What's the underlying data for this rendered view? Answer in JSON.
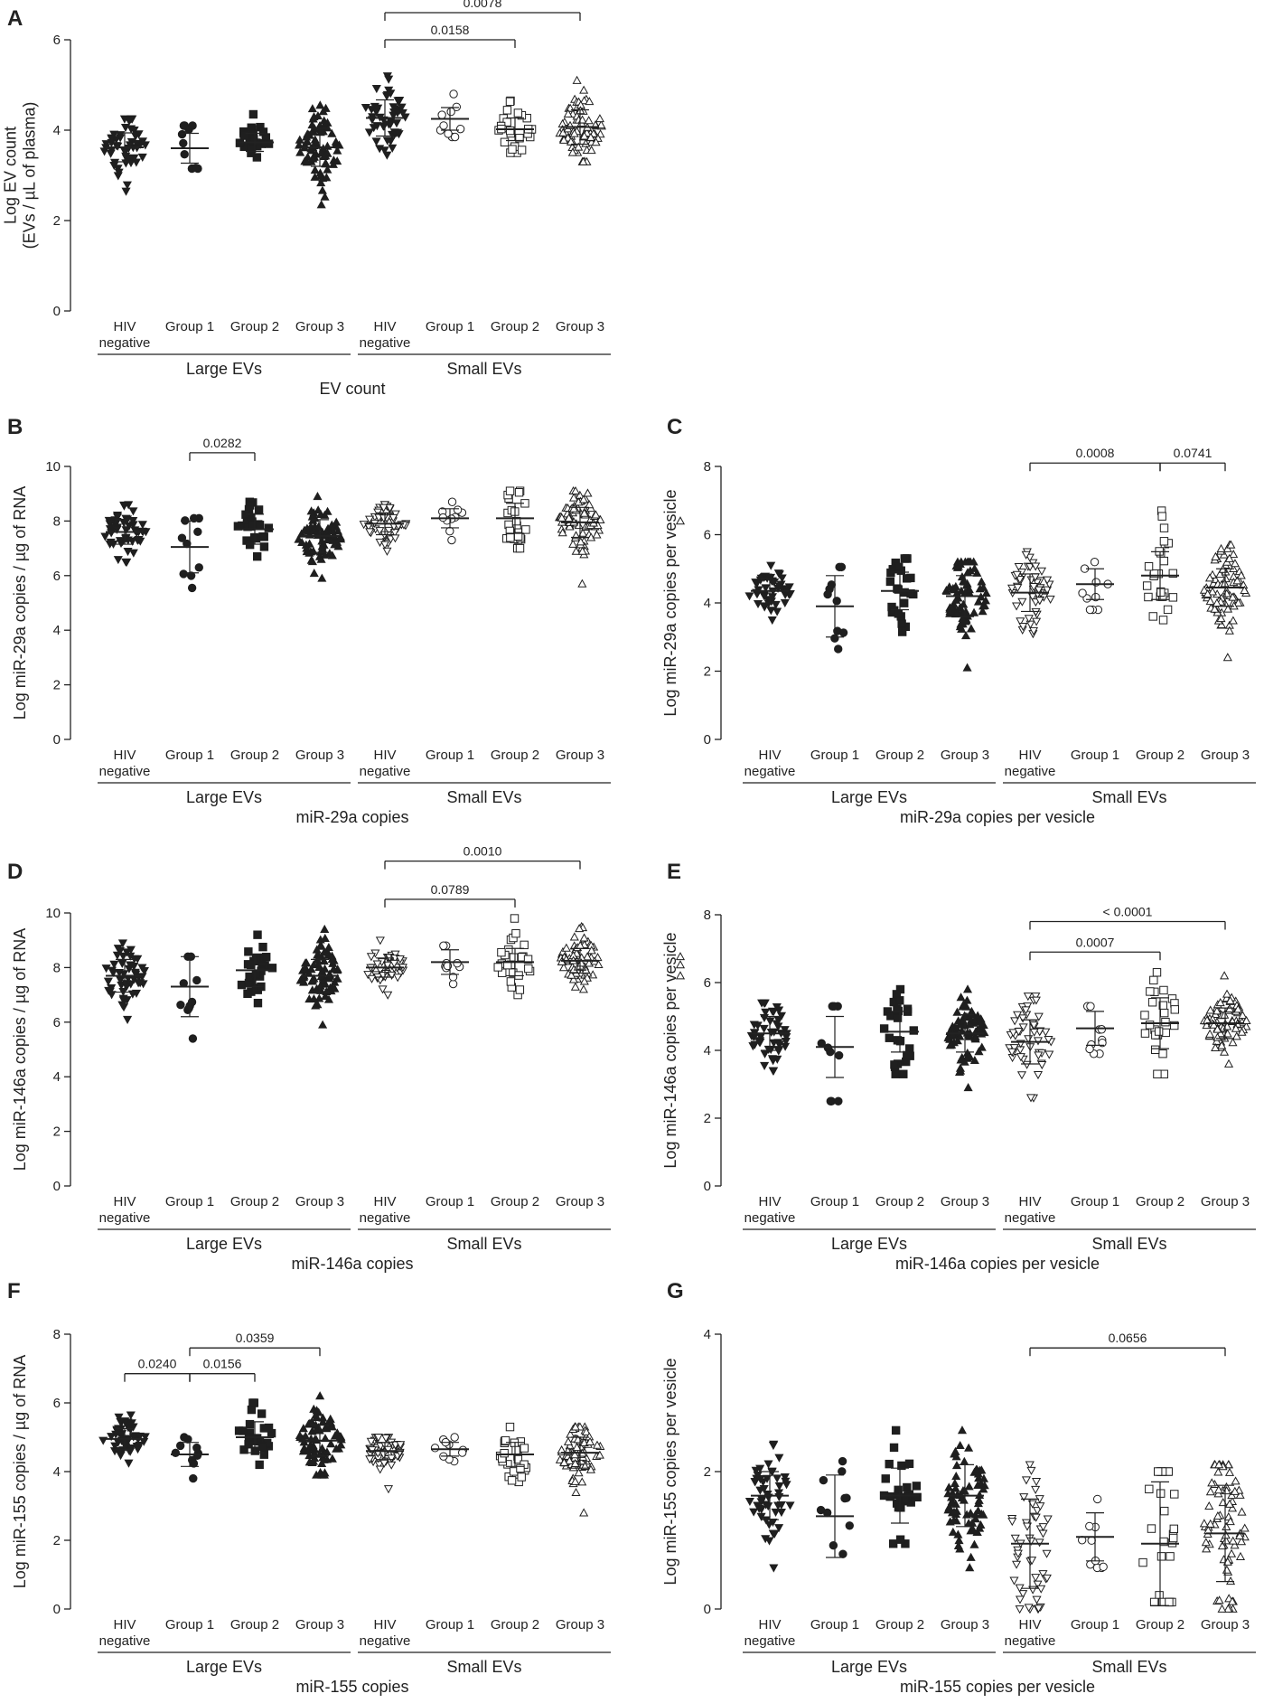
{
  "chart_data": [
    {
      "panel": "A",
      "type": "scatter",
      "title": "EV count",
      "ylabel": "Log EV count\n(EVs / µL of plasma)",
      "ylim": [
        0,
        6
      ],
      "yticks": [
        0,
        2,
        4,
        6
      ],
      "categories": [
        "HIV\nnegative",
        "Group 1",
        "Group 2",
        "Group 3",
        "HIV\nnegative",
        "Group 1",
        "Group 2",
        "Group 3"
      ],
      "group_labels": [
        "Large EVs",
        "Small EVs"
      ],
      "markers": [
        "tri-down-filled",
        "circle-filled",
        "square-filled",
        "tri-up-filled",
        "tri-down-filled",
        "circle-open",
        "square-open",
        "tri-up-open"
      ],
      "series": [
        {
          "name": "Large EVs HIV negative",
          "n": 50,
          "mean": 3.62,
          "sd": 0.32,
          "min": 2.65,
          "max": 4.25
        },
        {
          "name": "Large EVs Group 1",
          "n": 10,
          "mean": 3.6,
          "sd": 0.33,
          "min": 3.15,
          "max": 4.1
        },
        {
          "name": "Large EVs Group 2",
          "n": 25,
          "mean": 3.73,
          "sd": 0.2,
          "min": 3.4,
          "max": 4.35
        },
        {
          "name": "Large EVs Group 3",
          "n": 75,
          "mean": 3.62,
          "sd": 0.42,
          "min": 2.35,
          "max": 4.55
        },
        {
          "name": "Small EVs HIV negative",
          "n": 50,
          "mean": 4.27,
          "sd": 0.4,
          "min": 3.45,
          "max": 5.2
        },
        {
          "name": "Small EVs Group 1",
          "n": 10,
          "mean": 4.25,
          "sd": 0.25,
          "min": 3.85,
          "max": 4.8
        },
        {
          "name": "Small EVs Group 2",
          "n": 25,
          "mean": 4.02,
          "sd": 0.25,
          "min": 3.5,
          "max": 4.65
        },
        {
          "name": "Small EVs Group 3",
          "n": 75,
          "mean": 4.07,
          "sd": 0.38,
          "min": 3.3,
          "max": 5.1
        }
      ],
      "extra_points": [],
      "brackets": [
        {
          "from": 4,
          "to": 7,
          "label": "0.0078",
          "y": 6.6
        },
        {
          "from": 4,
          "to": 6,
          "label": "0.0158",
          "y": 6.0
        }
      ]
    },
    {
      "panel": "B",
      "type": "scatter",
      "title": "miR-29a copies",
      "ylabel": "Log miR-29a copies / µg of RNA",
      "ylim": [
        0,
        10
      ],
      "yticks": [
        0,
        2,
        4,
        6,
        8,
        10
      ],
      "categories": [
        "HIV\nnegative",
        "Group 1",
        "Group 2",
        "Group 3",
        "HIV\nnegative",
        "Group 1",
        "Group 2",
        "Group 3"
      ],
      "group_labels": [
        "Large EVs",
        "Small EVs"
      ],
      "markers": [
        "tri-down-filled",
        "circle-filled",
        "square-filled",
        "tri-up-filled",
        "tri-down-open",
        "circle-open",
        "square-open",
        "tri-up-open"
      ],
      "series": [
        {
          "name": "Large EVs HIV negative",
          "n": 50,
          "mean": 7.6,
          "sd": 0.45,
          "min": 6.5,
          "max": 8.6
        },
        {
          "name": "Large EVs Group 1",
          "n": 10,
          "mean": 7.05,
          "sd": 0.95,
          "min": 5.55,
          "max": 8.1
        },
        {
          "name": "Large EVs Group 2",
          "n": 25,
          "mean": 7.7,
          "sd": 0.55,
          "min": 6.7,
          "max": 8.7
        },
        {
          "name": "Large EVs Group 3",
          "n": 75,
          "mean": 7.45,
          "sd": 0.6,
          "min": 5.9,
          "max": 8.9
        },
        {
          "name": "Small EVs HIV negative",
          "n": 50,
          "mean": 7.9,
          "sd": 0.4,
          "min": 6.9,
          "max": 8.6
        },
        {
          "name": "Small EVs Group 1",
          "n": 10,
          "mean": 8.1,
          "sd": 0.35,
          "min": 7.3,
          "max": 8.7
        },
        {
          "name": "Small EVs Group 2",
          "n": 25,
          "mean": 8.1,
          "sd": 0.55,
          "min": 7.0,
          "max": 9.1
        },
        {
          "name": "Small EVs Group 3",
          "n": 75,
          "mean": 7.95,
          "sd": 0.55,
          "min": 5.7,
          "max": 9.1
        }
      ],
      "extra_points": [
        {
          "x": 9,
          "y": 8.0,
          "marker": "tri-up-open"
        }
      ],
      "brackets": [
        {
          "from": 1,
          "to": 2,
          "label": "0.0282",
          "y": 10.5
        }
      ]
    },
    {
      "panel": "C",
      "type": "scatter",
      "title": "miR-29a copies per vesicle",
      "ylabel": "Log miR-29a copies per vesicle",
      "ylim": [
        0,
        8
      ],
      "yticks": [
        0,
        2,
        4,
        6,
        8
      ],
      "categories": [
        "HIV\nnegative",
        "Group 1",
        "Group 2",
        "Group 3",
        "HIV\nnegative",
        "Group 1",
        "Group 2",
        "Group 3"
      ],
      "group_labels": [
        "Large EVs",
        "Small EVs"
      ],
      "markers": [
        "tri-down-filled",
        "circle-filled",
        "square-filled",
        "tri-up-filled",
        "tri-down-open",
        "circle-open",
        "square-open",
        "tri-up-open"
      ],
      "series": [
        {
          "name": "Large EVs HIV negative",
          "n": 50,
          "mean": 4.35,
          "sd": 0.35,
          "min": 3.5,
          "max": 5.1
        },
        {
          "name": "Large EVs Group 1",
          "n": 10,
          "mean": 3.9,
          "sd": 0.9,
          "min": 2.65,
          "max": 5.05
        },
        {
          "name": "Large EVs Group 2",
          "n": 25,
          "mean": 4.35,
          "sd": 0.55,
          "min": 3.15,
          "max": 5.3
        },
        {
          "name": "Large EVs Group 3",
          "n": 75,
          "mean": 4.2,
          "sd": 0.6,
          "min": 2.1,
          "max": 5.2
        },
        {
          "name": "Small EVs HIV negative",
          "n": 50,
          "mean": 4.3,
          "sd": 0.55,
          "min": 3.1,
          "max": 5.5
        },
        {
          "name": "Small EVs Group 1",
          "n": 10,
          "mean": 4.55,
          "sd": 0.45,
          "min": 3.8,
          "max": 5.2
        },
        {
          "name": "Small EVs Group 2",
          "n": 25,
          "mean": 4.8,
          "sd": 0.7,
          "min": 3.5,
          "max": 6.7
        },
        {
          "name": "Small EVs Group 3",
          "n": 75,
          "mean": 4.45,
          "sd": 0.55,
          "min": 2.4,
          "max": 5.7
        }
      ],
      "extra_points": [],
      "brackets": [
        {
          "from": 4,
          "to": 6,
          "label": "0.0008",
          "y": 8.1
        },
        {
          "from": 6,
          "to": 7,
          "label": "0.0741",
          "y": 8.1
        }
      ]
    },
    {
      "panel": "D",
      "type": "scatter",
      "title": "miR-146a copies",
      "ylabel": "Log miR-146a copies / µg of RNA",
      "ylim": [
        0,
        10
      ],
      "yticks": [
        0,
        2,
        4,
        6,
        8,
        10
      ],
      "categories": [
        "HIV\nnegative",
        "Group 1",
        "Group 2",
        "Group 3",
        "HIV\nnegative",
        "Group 1",
        "Group 2",
        "Group 3"
      ],
      "group_labels": [
        "Large EVs",
        "Small EVs"
      ],
      "markers": [
        "tri-down-filled",
        "circle-filled",
        "square-filled",
        "tri-up-filled",
        "tri-down-open",
        "circle-open",
        "square-open",
        "tri-up-open"
      ],
      "series": [
        {
          "name": "Large EVs HIV negative",
          "n": 50,
          "mean": 7.7,
          "sd": 0.6,
          "min": 6.1,
          "max": 8.9
        },
        {
          "name": "Large EVs Group 1",
          "n": 10,
          "mean": 7.3,
          "sd": 1.1,
          "min": 5.4,
          "max": 8.4
        },
        {
          "name": "Large EVs Group 2",
          "n": 25,
          "mean": 7.9,
          "sd": 0.6,
          "min": 6.7,
          "max": 9.2
        },
        {
          "name": "Large EVs Group 3",
          "n": 75,
          "mean": 7.7,
          "sd": 0.6,
          "min": 5.9,
          "max": 9.4
        },
        {
          "name": "Small EVs HIV negative",
          "n": 50,
          "mean": 8.0,
          "sd": 0.35,
          "min": 7.0,
          "max": 9.0
        },
        {
          "name": "Small EVs Group 1",
          "n": 10,
          "mean": 8.2,
          "sd": 0.45,
          "min": 7.4,
          "max": 8.8
        },
        {
          "name": "Small EVs Group 2",
          "n": 25,
          "mean": 8.2,
          "sd": 0.5,
          "min": 7.0,
          "max": 9.8
        },
        {
          "name": "Small EVs Group 3",
          "n": 75,
          "mean": 8.25,
          "sd": 0.45,
          "min": 7.2,
          "max": 9.5
        }
      ],
      "extra_points": [
        {
          "x": 9,
          "y": 8.4,
          "marker": "tri-up-open"
        },
        {
          "x": 9,
          "y": 8.1,
          "marker": "tri-up-open"
        },
        {
          "x": 9,
          "y": 7.7,
          "marker": "tri-up-open"
        }
      ],
      "brackets": [
        {
          "from": 4,
          "to": 7,
          "label": "0.0010",
          "y": 11.9
        },
        {
          "from": 4,
          "to": 6,
          "label": "0.0789",
          "y": 10.5
        }
      ]
    },
    {
      "panel": "E",
      "type": "scatter",
      "title": "miR-146a copies per vesicle",
      "ylabel": "Log miR-146a copies per vesicle",
      "ylim": [
        0,
        8
      ],
      "yticks": [
        0,
        2,
        4,
        6,
        8
      ],
      "categories": [
        "HIV\nnegative",
        "Group 1",
        "Group 2",
        "Group 3",
        "HIV\nnegative",
        "Group 1",
        "Group 2",
        "Group 3"
      ],
      "group_labels": [
        "Large EVs",
        "Small EVs"
      ],
      "markers": [
        "tri-down-filled",
        "circle-filled",
        "square-filled",
        "tri-up-filled",
        "tri-down-open",
        "circle-open",
        "square-open",
        "tri-up-open"
      ],
      "series": [
        {
          "name": "Large EVs HIV negative",
          "n": 50,
          "mean": 4.5,
          "sd": 0.5,
          "min": 3.4,
          "max": 5.4
        },
        {
          "name": "Large EVs Group 1",
          "n": 10,
          "mean": 4.1,
          "sd": 0.9,
          "min": 2.5,
          "max": 5.3
        },
        {
          "name": "Large EVs Group 2",
          "n": 25,
          "mean": 4.55,
          "sd": 0.6,
          "min": 3.3,
          "max": 5.8
        },
        {
          "name": "Large EVs Group 3",
          "n": 75,
          "mean": 4.5,
          "sd": 0.55,
          "min": 2.9,
          "max": 5.8
        },
        {
          "name": "Small EVs HIV negative",
          "n": 50,
          "mean": 4.25,
          "sd": 0.65,
          "min": 2.6,
          "max": 5.6
        },
        {
          "name": "Small EVs Group 1",
          "n": 10,
          "mean": 4.65,
          "sd": 0.5,
          "min": 3.9,
          "max": 5.3
        },
        {
          "name": "Small EVs Group 2",
          "n": 25,
          "mean": 4.8,
          "sd": 0.75,
          "min": 3.3,
          "max": 6.3
        },
        {
          "name": "Small EVs Group 3",
          "n": 75,
          "mean": 4.8,
          "sd": 0.45,
          "min": 3.6,
          "max": 6.2
        }
      ],
      "extra_points": [],
      "brackets": [
        {
          "from": 4,
          "to": 7,
          "label": "< 0.0001",
          "y": 7.8
        },
        {
          "from": 4,
          "to": 6,
          "label": "0.0007",
          "y": 6.9
        }
      ]
    },
    {
      "panel": "F",
      "type": "scatter",
      "title": "miR-155 copies",
      "ylabel": "Log miR-155 copies / µg of RNA",
      "ylim": [
        0,
        8
      ],
      "yticks": [
        0,
        2,
        4,
        6,
        8
      ],
      "categories": [
        "HIV\nnegative",
        "Group 1",
        "Group 2",
        "Group 3",
        "HIV\nnegative",
        "Group 1",
        "Group 2",
        "Group 3"
      ],
      "group_labels": [
        "Large EVs",
        "Small EVs"
      ],
      "markers": [
        "tri-down-filled",
        "circle-filled",
        "square-filled",
        "tri-up-filled",
        "tri-down-open",
        "circle-open",
        "square-open",
        "tri-up-open"
      ],
      "series": [
        {
          "name": "Large EVs HIV negative",
          "n": 50,
          "mean": 4.95,
          "sd": 0.3,
          "min": 4.25,
          "max": 5.65
        },
        {
          "name": "Large EVs Group 1",
          "n": 10,
          "mean": 4.5,
          "sd": 0.35,
          "min": 3.8,
          "max": 5.0
        },
        {
          "name": "Large EVs Group 2",
          "n": 25,
          "mean": 5.0,
          "sd": 0.45,
          "min": 4.2,
          "max": 6.0
        },
        {
          "name": "Large EVs Group 3",
          "n": 75,
          "mean": 4.9,
          "sd": 0.45,
          "min": 3.9,
          "max": 6.2
        },
        {
          "name": "Small EVs HIV negative",
          "n": 50,
          "mean": 4.6,
          "sd": 0.25,
          "min": 3.5,
          "max": 5.0
        },
        {
          "name": "Small EVs Group 1",
          "n": 10,
          "mean": 4.65,
          "sd": 0.2,
          "min": 4.3,
          "max": 5.0
        },
        {
          "name": "Small EVs Group 2",
          "n": 25,
          "mean": 4.5,
          "sd": 0.35,
          "min": 3.7,
          "max": 5.3
        },
        {
          "name": "Small EVs Group 3",
          "n": 75,
          "mean": 4.55,
          "sd": 0.45,
          "min": 2.8,
          "max": 5.3
        }
      ],
      "extra_points": [],
      "brackets": [
        {
          "from": 0,
          "to": 1,
          "label": "0.0240",
          "y": 6.85
        },
        {
          "from": 1,
          "to": 2,
          "label": "0.0156",
          "y": 6.85
        },
        {
          "from": 1,
          "to": 3,
          "label": "0.0359",
          "y": 7.6
        }
      ]
    },
    {
      "panel": "G",
      "type": "scatter",
      "title": "miR-155 copies per vesicle",
      "ylabel": "Log miR-155 copies per vesicle",
      "ylim": [
        0,
        4
      ],
      "yticks": [
        0,
        2,
        4
      ],
      "categories": [
        "HIV\nnegative",
        "Group 1",
        "Group 2",
        "Group 3",
        "HIV\nnegative",
        "Group 1",
        "Group 2",
        "Group 3"
      ],
      "group_labels": [
        "Large EVs",
        "Small EVs"
      ],
      "markers": [
        "tri-down-filled",
        "circle-filled",
        "square-filled",
        "tri-up-filled",
        "tri-down-open",
        "circle-open",
        "square-open",
        "tri-up-open"
      ],
      "series": [
        {
          "name": "Large EVs HIV negative",
          "n": 50,
          "mean": 1.65,
          "sd": 0.35,
          "min": 0.6,
          "max": 2.4
        },
        {
          "name": "Large EVs Group 1",
          "n": 10,
          "mean": 1.35,
          "sd": 0.6,
          "min": 0.8,
          "max": 2.15
        },
        {
          "name": "Large EVs Group 2",
          "n": 25,
          "mean": 1.65,
          "sd": 0.4,
          "min": 0.95,
          "max": 2.6
        },
        {
          "name": "Large EVs Group 3",
          "n": 75,
          "mean": 1.65,
          "sd": 0.45,
          "min": 0.6,
          "max": 2.6
        },
        {
          "name": "Small EVs HIV negative",
          "n": 50,
          "mean": 0.95,
          "sd": 0.65,
          "min": 0.0,
          "max": 2.1
        },
        {
          "name": "Small EVs Group 1",
          "n": 10,
          "mean": 1.05,
          "sd": 0.35,
          "min": 0.6,
          "max": 1.6
        },
        {
          "name": "Small EVs Group 2",
          "n": 25,
          "mean": 0.95,
          "sd": 0.9,
          "min": 0.1,
          "max": 2.0
        },
        {
          "name": "Small EVs Group 3",
          "n": 75,
          "mean": 1.1,
          "sd": 0.7,
          "min": 0.0,
          "max": 2.1
        }
      ],
      "extra_points": [],
      "brackets": [
        {
          "from": 4,
          "to": 7,
          "label": "0.0656",
          "y": 3.8
        }
      ]
    }
  ]
}
